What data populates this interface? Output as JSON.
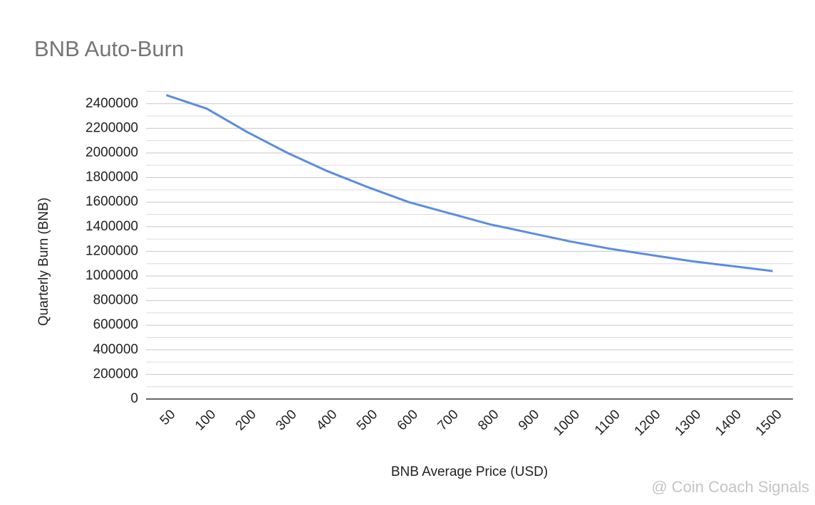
{
  "chart_data": {
    "type": "line",
    "title": "BNB Auto-Burn",
    "x_label": "BNB Average Price (USD)",
    "y_label": "Quarterly Burn (BNB)",
    "watermark": "@ Coin Coach Signals",
    "categories": [
      "50",
      "100",
      "200",
      "300",
      "400",
      "500",
      "600",
      "700",
      "800",
      "900",
      "1000",
      "1100",
      "1200",
      "1300",
      "1400",
      "1500"
    ],
    "series": [
      {
        "name": "Quarterly Burn",
        "color": "#5b8de0",
        "values": [
          2470000,
          2360000,
          2170000,
          2000000,
          1850000,
          1720000,
          1600000,
          1510000,
          1420000,
          1350000,
          1280000,
          1220000,
          1170000,
          1120000,
          1080000,
          1040000
        ]
      }
    ],
    "ylim": [
      0,
      2500000
    ],
    "yticks": [
      0,
      200000,
      400000,
      600000,
      800000,
      1000000,
      1200000,
      1400000,
      1600000,
      1800000,
      2000000,
      2200000,
      2400000
    ],
    "grid": true,
    "minor_grid": true
  }
}
